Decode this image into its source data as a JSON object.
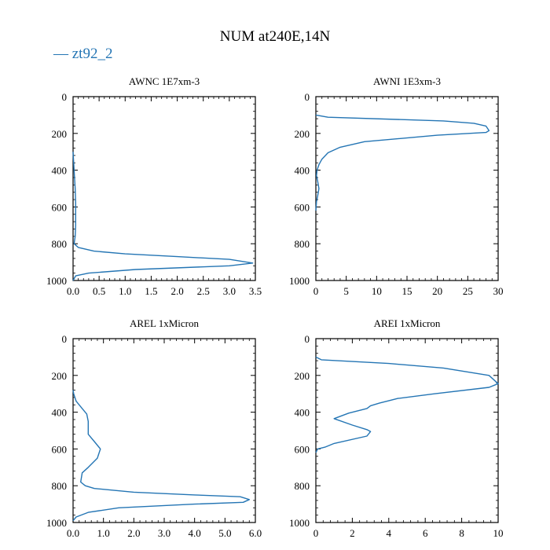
{
  "figure": {
    "title": "NUM at240E,14N",
    "legend": {
      "label": "— zt92_2",
      "color": "#2475b4"
    }
  },
  "chart_data": [
    {
      "type": "line",
      "title": "AWNC  1E7xm-3",
      "xlim": [
        0,
        3.5
      ],
      "xticks": [
        0,
        0.5,
        1,
        1.5,
        2,
        2.5,
        3,
        3.5
      ],
      "xticklabels": [
        "0.0",
        "0.5",
        "1.0",
        "1.5",
        "2.0",
        "2.5",
        "3.0",
        "3.5"
      ],
      "ylim": [
        0,
        1000
      ],
      "y_inverted": true,
      "yticks": [
        0,
        200,
        400,
        600,
        800,
        1000
      ],
      "yticklabels": [
        "0",
        "200",
        "400",
        "600",
        "800",
        "1000"
      ],
      "series": [
        {
          "color": "#2475b4",
          "x": [
            0,
            0.02,
            0.04,
            0.05,
            0.05,
            0.05,
            0.04,
            0.02,
            0.1,
            0.4,
            1.0,
            2.0,
            3.0,
            3.45,
            3.0,
            1.2,
            0.3,
            0.05,
            0
          ],
          "y": [
            300,
            400,
            500,
            580,
            650,
            700,
            760,
            800,
            820,
            840,
            855,
            870,
            885,
            905,
            920,
            940,
            960,
            975,
            1000
          ]
        }
      ]
    },
    {
      "type": "line",
      "title": "AWNI  1E3xm-3",
      "xlim": [
        0,
        30
      ],
      "xticks": [
        0,
        5,
        10,
        15,
        20,
        25,
        30
      ],
      "xticklabels": [
        "0",
        "5",
        "10",
        "15",
        "20",
        "25",
        "30"
      ],
      "ylim": [
        0,
        1000
      ],
      "y_inverted": true,
      "yticks": [
        0,
        200,
        400,
        600,
        800,
        1000
      ],
      "yticklabels": [
        "0",
        "200",
        "400",
        "600",
        "800",
        "1000"
      ],
      "series": [
        {
          "color": "#2475b4",
          "x": [
            0,
            2,
            21,
            26,
            28,
            28.5,
            28,
            20,
            8,
            4,
            2,
            1,
            0.5,
            0.2,
            0.1,
            0.3,
            0.5,
            0.3,
            0.1,
            0.05,
            0
          ],
          "y": [
            100,
            112,
            132,
            145,
            160,
            185,
            195,
            210,
            245,
            275,
            305,
            340,
            370,
            400,
            430,
            460,
            500,
            540,
            570,
            600,
            620
          ]
        }
      ]
    },
    {
      "type": "line",
      "title": "AREL  1xMicron",
      "xlim": [
        0,
        6
      ],
      "xticks": [
        0,
        1,
        2,
        3,
        4,
        5,
        6
      ],
      "xticklabels": [
        "0.0",
        "1.0",
        "2.0",
        "3.0",
        "4.0",
        "5.0",
        "6.0"
      ],
      "ylim": [
        0,
        1000
      ],
      "y_inverted": true,
      "yticks": [
        0,
        200,
        400,
        600,
        800,
        1000
      ],
      "yticklabels": [
        "0",
        "200",
        "400",
        "600",
        "800",
        "1000"
      ],
      "series": [
        {
          "color": "#2475b4",
          "x": [
            0,
            0.02,
            0.1,
            0.3,
            0.45,
            0.5,
            0.5,
            0.7,
            0.9,
            0.8,
            0.5,
            0.3,
            0.25,
            0.4,
            0.7,
            2.0,
            4.0,
            5.5,
            5.8,
            5.6,
            4.0,
            1.5,
            0.5,
            0.1,
            0
          ],
          "y": [
            280,
            300,
            340,
            380,
            410,
            450,
            520,
            560,
            600,
            650,
            700,
            730,
            780,
            800,
            815,
            835,
            850,
            860,
            875,
            890,
            900,
            920,
            945,
            970,
            990
          ]
        }
      ]
    },
    {
      "type": "line",
      "title": "AREI  1xMicron",
      "xlim": [
        0,
        10
      ],
      "xticks": [
        0,
        2,
        4,
        6,
        8,
        10
      ],
      "xticklabels": [
        "0",
        "2",
        "4",
        "6",
        "8",
        "10"
      ],
      "ylim": [
        0,
        1000
      ],
      "y_inverted": true,
      "yticks": [
        0,
        200,
        400,
        600,
        800,
        1000
      ],
      "yticklabels": [
        "0",
        "200",
        "400",
        "600",
        "800",
        "1000"
      ],
      "series": [
        {
          "color": "#2475b4",
          "x": [
            0,
            0.3,
            4,
            7,
            9.5,
            10,
            9.5,
            6.5,
            4.5,
            3.5,
            3,
            2.8,
            1.8,
            1,
            2,
            2.8,
            3,
            2.8,
            1,
            0.5,
            0.1,
            0
          ],
          "y": [
            100,
            115,
            135,
            160,
            200,
            245,
            265,
            300,
            325,
            350,
            365,
            380,
            405,
            435,
            470,
            495,
            505,
            530,
            570,
            590,
            600,
            620
          ]
        }
      ]
    }
  ]
}
